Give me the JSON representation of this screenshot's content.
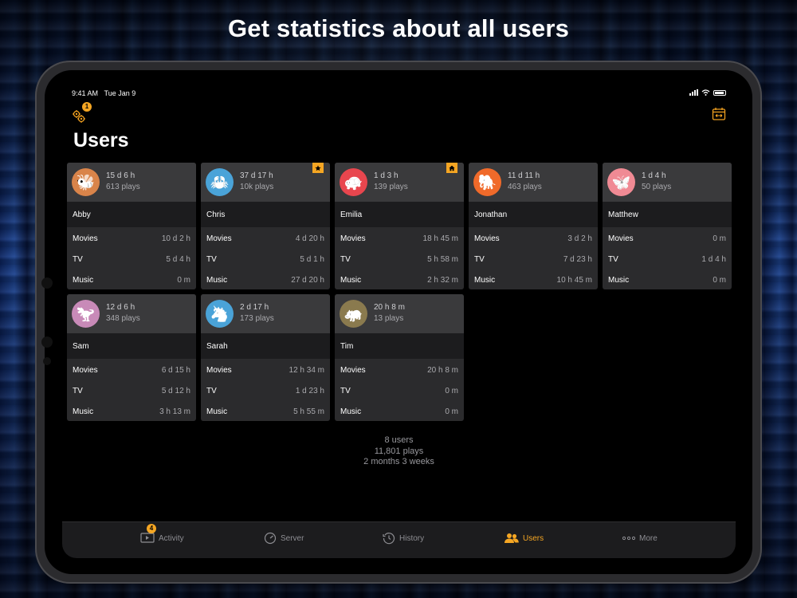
{
  "headline": "Get statistics about all users",
  "status_bar": {
    "time": "9:41 AM",
    "date": "Tue Jan 9"
  },
  "toolbar": {
    "settings_badge": "1",
    "settings_icon": "gears-icon",
    "calendar_icon": "calendar-range-icon"
  },
  "page_title": "Users",
  "row_labels": {
    "movies": "Movies",
    "tv": "TV",
    "music": "Music"
  },
  "users": [
    {
      "name": "Abby",
      "total_time": "15 d 6 h",
      "plays": "613 plays",
      "avatar": "bee",
      "color": "#d9844a",
      "badge": "",
      "movies": "10 d 2 h",
      "tv": "5 d 4 h",
      "music": "0 m"
    },
    {
      "name": "Chris",
      "total_time": "37 d 17 h",
      "plays": "10k plays",
      "avatar": "crab",
      "color": "#4aa3d8",
      "badge": "star",
      "movies": "4 d 20 h",
      "tv": "5 d 1 h",
      "music": "27 d 20 h"
    },
    {
      "name": "Emilia",
      "total_time": "1 d 3 h",
      "plays": "139 plays",
      "avatar": "turtle",
      "color": "#e8464e",
      "badge": "home",
      "movies": "18 h 45 m",
      "tv": "5 h 58 m",
      "music": "2 h 32 m"
    },
    {
      "name": "Jonathan",
      "total_time": "11 d 11 h",
      "plays": "463 plays",
      "avatar": "elephant",
      "color": "#f06a2a",
      "badge": "",
      "movies": "3 d 2 h",
      "tv": "7 d 23 h",
      "music": "10 h 45 m"
    },
    {
      "name": "Matthew",
      "total_time": "1 d 4 h",
      "plays": "50 plays",
      "avatar": "butterfly",
      "color": "#f08a94",
      "badge": "",
      "movies": "0 m",
      "tv": "1 d 4 h",
      "music": "0 m"
    },
    {
      "name": "Sam",
      "total_time": "12 d 6 h",
      "plays": "348 plays",
      "avatar": "dinosaur",
      "color": "#c88ab8",
      "badge": "",
      "movies": "6 d 15 h",
      "tv": "5 d 12 h",
      "music": "3 h 13 m"
    },
    {
      "name": "Sarah",
      "total_time": "2 d 17 h",
      "plays": "173 plays",
      "avatar": "unicorn",
      "color": "#4aa3d8",
      "badge": "",
      "movies": "12 h 34 m",
      "tv": "1 d 23 h",
      "music": "5 h 55 m"
    },
    {
      "name": "Tim",
      "total_time": "20 h 8 m",
      "plays": "13 plays",
      "avatar": "hippo",
      "color": "#8a7a4e",
      "badge": "",
      "movies": "20 h 8 m",
      "tv": "0 m",
      "music": "0 m"
    }
  ],
  "summary": {
    "users": "8 users",
    "plays": "11,801 plays",
    "duration": "2 months 3 weeks"
  },
  "tabs": [
    {
      "label": "Activity",
      "icon": "play-screen-icon",
      "badge": "4",
      "active": false
    },
    {
      "label": "Server",
      "icon": "gauge-icon",
      "badge": "",
      "active": false
    },
    {
      "label": "History",
      "icon": "history-clock-icon",
      "badge": "",
      "active": false
    },
    {
      "label": "Users",
      "icon": "users-icon",
      "badge": "",
      "active": true
    },
    {
      "label": "More",
      "icon": "more-dots-icon",
      "badge": "",
      "active": false
    }
  ],
  "colors": {
    "accent": "#f5a623",
    "card": "#2b2b2d",
    "card_header": "#3a3a3c"
  }
}
